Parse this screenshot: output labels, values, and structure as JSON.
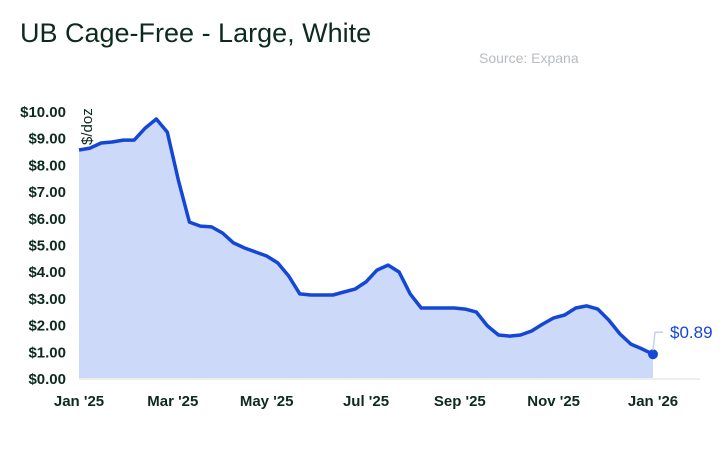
{
  "title": "UB Cage-Free - Large, White",
  "source": "Source: Expana",
  "chart_data": {
    "type": "area",
    "title": "UB Cage-Free - Large, White",
    "ylabel": "$/doz",
    "xlabel": "",
    "ylim": [
      0,
      10
    ],
    "yticks": [
      0,
      1,
      2,
      3,
      4,
      5,
      6,
      7,
      8,
      9,
      10
    ],
    "ytick_labels": [
      "$0.00",
      "$1.00",
      "$2.00",
      "$3.00",
      "$4.00",
      "$5.00",
      "$6.00",
      "$7.00",
      "$8.00",
      "$9.00",
      "$10.00"
    ],
    "xtick_labels": [
      "Jan '25",
      "Mar '25",
      "May '25",
      "Jul '25",
      "Sep '25",
      "Nov '25",
      "Jan '26"
    ],
    "xtick_weeks": [
      0,
      8.5,
      17,
      26,
      34.5,
      43,
      52
    ],
    "weeks_span": 52,
    "values": [
      8.54,
      8.61,
      8.8,
      8.84,
      8.91,
      8.91,
      9.36,
      9.7,
      9.21,
      7.42,
      5.84,
      5.69,
      5.66,
      5.43,
      5.06,
      4.87,
      4.72,
      4.57,
      4.31,
      3.82,
      3.15,
      3.11,
      3.11,
      3.11,
      3.22,
      3.33,
      3.6,
      4.04,
      4.23,
      3.97,
      3.15,
      2.62,
      2.62,
      2.62,
      2.62,
      2.58,
      2.47,
      1.95,
      1.61,
      1.57,
      1.61,
      1.76,
      2.02,
      2.25,
      2.36,
      2.62,
      2.7,
      2.58,
      2.17,
      1.65,
      1.27,
      1.09,
      0.89
    ],
    "last_label": "$0.89",
    "line_color": "#1447d6",
    "fill_color": "#cdd9f8",
    "grid": false
  }
}
